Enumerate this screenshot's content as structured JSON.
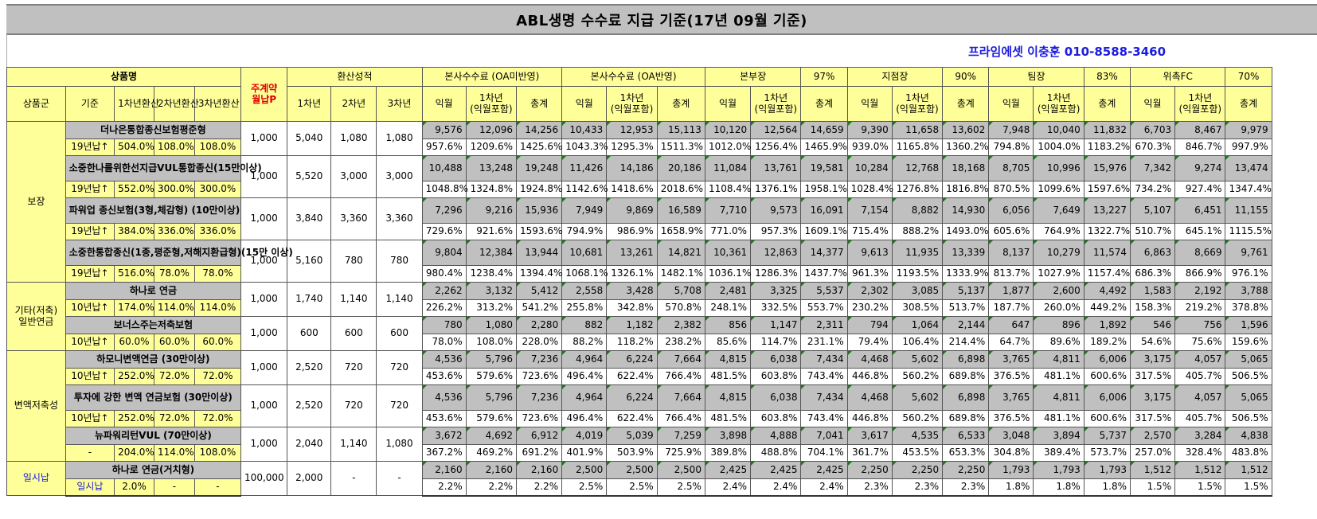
{
  "title": "ABL생명 수수료 지급 기준(17년 09월 기준)",
  "contact": "프라임에셋 이충훈 010-8588-3460",
  "header": {
    "product_name": "상품명",
    "monthly_p": "주계약\n월납P",
    "conversion": "환산성적",
    "groups": [
      {
        "label": "본사수수료 (OA미반영)",
        "pct": ""
      },
      {
        "label": "본사수수료 (OA반영)",
        "pct": ""
      },
      {
        "label": "본부장",
        "pct": "97%"
      },
      {
        "label": "지점장",
        "pct": "90%"
      },
      {
        "label": "팀장",
        "pct": "83%"
      },
      {
        "label": "위촉FC",
        "pct": "70%"
      }
    ],
    "sub": [
      "상품군",
      "기준",
      "1차년환산",
      "2차년환산",
      "3차년환산"
    ],
    "conv_years": [
      "1차년",
      "2차년",
      "3차년"
    ],
    "fee_cols": [
      "익월",
      "1차년\n(익월포함)",
      "총계"
    ]
  },
  "categories": [
    {
      "name": "보장",
      "products": [
        {
          "name": "더나은통합종신보험평준형",
          "base": "19년납↑",
          "r1": "504.0%",
          "r2": "108.0%",
          "r3": "108.0%",
          "p": "1,000",
          "c1": "5,040",
          "c2": "1,080",
          "c3": "1,080",
          "amounts": [
            "9,576",
            "12,096",
            "14,256",
            "10,433",
            "12,953",
            "15,113",
            "10,120",
            "12,564",
            "14,659",
            "9,390",
            "11,658",
            "13,602",
            "7,948",
            "10,040",
            "11,832",
            "6,703",
            "8,467",
            "9,979"
          ],
          "pcts": [
            "957.6%",
            "1209.6%",
            "1425.6%",
            "1043.3%",
            "1295.3%",
            "1511.3%",
            "1012.0%",
            "1256.4%",
            "1465.9%",
            "939.0%",
            "1165.8%",
            "1360.2%",
            "794.8%",
            "1004.0%",
            "1183.2%",
            "670.3%",
            "846.7%",
            "997.9%"
          ]
        },
        {
          "name": "소중한나를위한선지급VUL통합종신(15만이상)",
          "base": "19년납↑",
          "r1": "552.0%",
          "r2": "300.0%",
          "r3": "300.0%",
          "p": "1,000",
          "c1": "5,520",
          "c2": "3,000",
          "c3": "3,000",
          "amounts": [
            "10,488",
            "13,248",
            "19,248",
            "11,426",
            "14,186",
            "20,186",
            "11,084",
            "13,761",
            "19,581",
            "10,284",
            "12,768",
            "18,168",
            "8,705",
            "10,996",
            "15,976",
            "7,342",
            "9,274",
            "13,474"
          ],
          "pcts": [
            "1048.8%",
            "1324.8%",
            "1924.8%",
            "1142.6%",
            "1418.6%",
            "2018.6%",
            "1108.4%",
            "1376.1%",
            "1958.1%",
            "1028.4%",
            "1276.8%",
            "1816.8%",
            "870.5%",
            "1099.6%",
            "1597.6%",
            "734.2%",
            "927.4%",
            "1347.4%"
          ]
        },
        {
          "name": "파워업 종신보험(3형,체감형) (10만이상)",
          "base": "19년납↑",
          "r1": "384.0%",
          "r2": "336.0%",
          "r3": "336.0%",
          "p": "1,000",
          "c1": "3,840",
          "c2": "3,360",
          "c3": "3,360",
          "amounts": [
            "7,296",
            "9,216",
            "15,936",
            "7,949",
            "9,869",
            "16,589",
            "7,710",
            "9,573",
            "16,091",
            "7,154",
            "8,882",
            "14,930",
            "6,056",
            "7,649",
            "13,227",
            "5,107",
            "6,451",
            "11,155"
          ],
          "pcts": [
            "729.6%",
            "921.6%",
            "1593.6%",
            "794.9%",
            "986.9%",
            "1658.9%",
            "771.0%",
            "957.3%",
            "1609.1%",
            "715.4%",
            "888.2%",
            "1493.0%",
            "605.6%",
            "764.9%",
            "1322.7%",
            "510.7%",
            "645.1%",
            "1115.5%"
          ]
        },
        {
          "name": "소중한통합종신(1종,평준형,저해지환급형)(15만 이상)",
          "base": "19년납↑",
          "r1": "516.0%",
          "r2": "78.0%",
          "r3": "78.0%",
          "p": "1,000",
          "c1": "5,160",
          "c2": "780",
          "c3": "780",
          "amounts": [
            "9,804",
            "12,384",
            "13,944",
            "10,681",
            "13,261",
            "14,821",
            "10,361",
            "12,863",
            "14,377",
            "9,613",
            "11,935",
            "13,339",
            "8,137",
            "10,279",
            "11,574",
            "6,863",
            "8,669",
            "9,761"
          ],
          "pcts": [
            "980.4%",
            "1238.4%",
            "1394.4%",
            "1068.1%",
            "1326.1%",
            "1482.1%",
            "1036.1%",
            "1286.3%",
            "1437.7%",
            "961.3%",
            "1193.5%",
            "1333.9%",
            "813.7%",
            "1027.9%",
            "1157.4%",
            "686.3%",
            "866.9%",
            "976.1%"
          ]
        }
      ]
    },
    {
      "name": "기타(저축)\n일반연금",
      "products": [
        {
          "name": "하나로 연금",
          "base": "10년납↑",
          "r1": "174.0%",
          "r2": "114.0%",
          "r3": "114.0%",
          "p": "1,000",
          "c1": "1,740",
          "c2": "1,140",
          "c3": "1,140",
          "amounts": [
            "2,262",
            "3,132",
            "5,412",
            "2,558",
            "3,428",
            "5,708",
            "2,481",
            "3,325",
            "5,537",
            "2,302",
            "3,085",
            "5,137",
            "1,877",
            "2,600",
            "4,492",
            "1,583",
            "2,192",
            "3,788"
          ],
          "pcts": [
            "226.2%",
            "313.2%",
            "541.2%",
            "255.8%",
            "342.8%",
            "570.8%",
            "248.1%",
            "332.5%",
            "553.7%",
            "230.2%",
            "308.5%",
            "513.7%",
            "187.7%",
            "260.0%",
            "449.2%",
            "158.3%",
            "219.2%",
            "378.8%"
          ]
        },
        {
          "name": "보너스주는저축보험",
          "base": "10년납↑",
          "r1": "60.0%",
          "r2": "60.0%",
          "r3": "60.0%",
          "p": "1,000",
          "c1": "600",
          "c2": "600",
          "c3": "600",
          "amounts": [
            "780",
            "1,080",
            "2,280",
            "882",
            "1,182",
            "2,382",
            "856",
            "1,147",
            "2,311",
            "794",
            "1,064",
            "2,144",
            "647",
            "896",
            "1,892",
            "546",
            "756",
            "1,596"
          ],
          "pcts": [
            "78.0%",
            "108.0%",
            "228.0%",
            "88.2%",
            "118.2%",
            "238.2%",
            "85.6%",
            "114.7%",
            "231.1%",
            "79.4%",
            "106.4%",
            "214.4%",
            "64.7%",
            "89.6%",
            "189.2%",
            "54.6%",
            "75.6%",
            "159.6%"
          ]
        }
      ]
    },
    {
      "name": "변액저축성",
      "products": [
        {
          "name": "하모니변액연금 (30만이상)",
          "base": "10년납↑",
          "r1": "252.0%",
          "r2": "72.0%",
          "r3": "72.0%",
          "p": "1,000",
          "c1": "2,520",
          "c2": "720",
          "c3": "720",
          "amounts": [
            "4,536",
            "5,796",
            "7,236",
            "4,964",
            "6,224",
            "7,664",
            "4,815",
            "6,038",
            "7,434",
            "4,468",
            "5,602",
            "6,898",
            "3,765",
            "4,811",
            "6,006",
            "3,175",
            "4,057",
            "5,065"
          ],
          "pcts": [
            "453.6%",
            "579.6%",
            "723.6%",
            "496.4%",
            "622.4%",
            "766.4%",
            "481.5%",
            "603.8%",
            "743.4%",
            "446.8%",
            "560.2%",
            "689.8%",
            "376.5%",
            "481.1%",
            "600.6%",
            "317.5%",
            "405.7%",
            "506.5%"
          ]
        },
        {
          "name": "투자에 강한 변액 연금보험 (30만이상)",
          "base": "10년납↑",
          "r1": "252.0%",
          "r2": "72.0%",
          "r3": "72.0%",
          "p": "1,000",
          "c1": "2,520",
          "c2": "720",
          "c3": "720",
          "amounts": [
            "4,536",
            "5,796",
            "7,236",
            "4,964",
            "6,224",
            "7,664",
            "4,815",
            "6,038",
            "7,434",
            "4,468",
            "5,602",
            "6,898",
            "3,765",
            "4,811",
            "6,006",
            "3,175",
            "4,057",
            "5,065"
          ],
          "pcts": [
            "453.6%",
            "579.6%",
            "723.6%",
            "496.4%",
            "622.4%",
            "766.4%",
            "481.5%",
            "603.8%",
            "743.4%",
            "446.8%",
            "560.2%",
            "689.8%",
            "376.5%",
            "481.1%",
            "600.6%",
            "317.5%",
            "405.7%",
            "506.5%"
          ]
        },
        {
          "name": "뉴파워리턴VUL (70만이상)",
          "base": "-",
          "r1": "204.0%",
          "r2": "114.0%",
          "r3": "108.0%",
          "p": "1,000",
          "c1": "2,040",
          "c2": "1,140",
          "c3": "1,080",
          "amounts": [
            "3,672",
            "4,692",
            "6,912",
            "4,019",
            "5,039",
            "7,259",
            "3,898",
            "4,888",
            "7,041",
            "3,617",
            "4,535",
            "6,533",
            "3,048",
            "3,894",
            "5,737",
            "2,570",
            "3,284",
            "4,838"
          ],
          "pcts": [
            "367.2%",
            "469.2%",
            "691.2%",
            "401.9%",
            "503.9%",
            "725.9%",
            "389.8%",
            "488.8%",
            "704.1%",
            "361.7%",
            "453.5%",
            "653.3%",
            "304.8%",
            "389.4%",
            "573.7%",
            "257.0%",
            "328.4%",
            "483.8%"
          ]
        }
      ]
    },
    {
      "name": "일시납",
      "products": [
        {
          "name": "하나로 연금(거치형)",
          "base": "일시납",
          "r1": "2.0%",
          "r2": "-",
          "r3": "-",
          "p": "100,000",
          "c1": "2,000",
          "c2": "-",
          "c3": "-",
          "amounts": [
            "2,160",
            "2,160",
            "2,160",
            "2,500",
            "2,500",
            "2,500",
            "2,425",
            "2,425",
            "2,425",
            "2,250",
            "2,250",
            "2,250",
            "1,793",
            "1,793",
            "1,793",
            "1,512",
            "1,512",
            "1,512"
          ],
          "pcts": [
            "2.2%",
            "2.2%",
            "2.2%",
            "2.5%",
            "2.5%",
            "2.5%",
            "2.4%",
            "2.4%",
            "2.4%",
            "2.3%",
            "2.3%",
            "2.3%",
            "1.8%",
            "1.8%",
            "1.8%",
            "1.5%",
            "1.5%",
            "1.5%"
          ]
        }
      ]
    }
  ]
}
